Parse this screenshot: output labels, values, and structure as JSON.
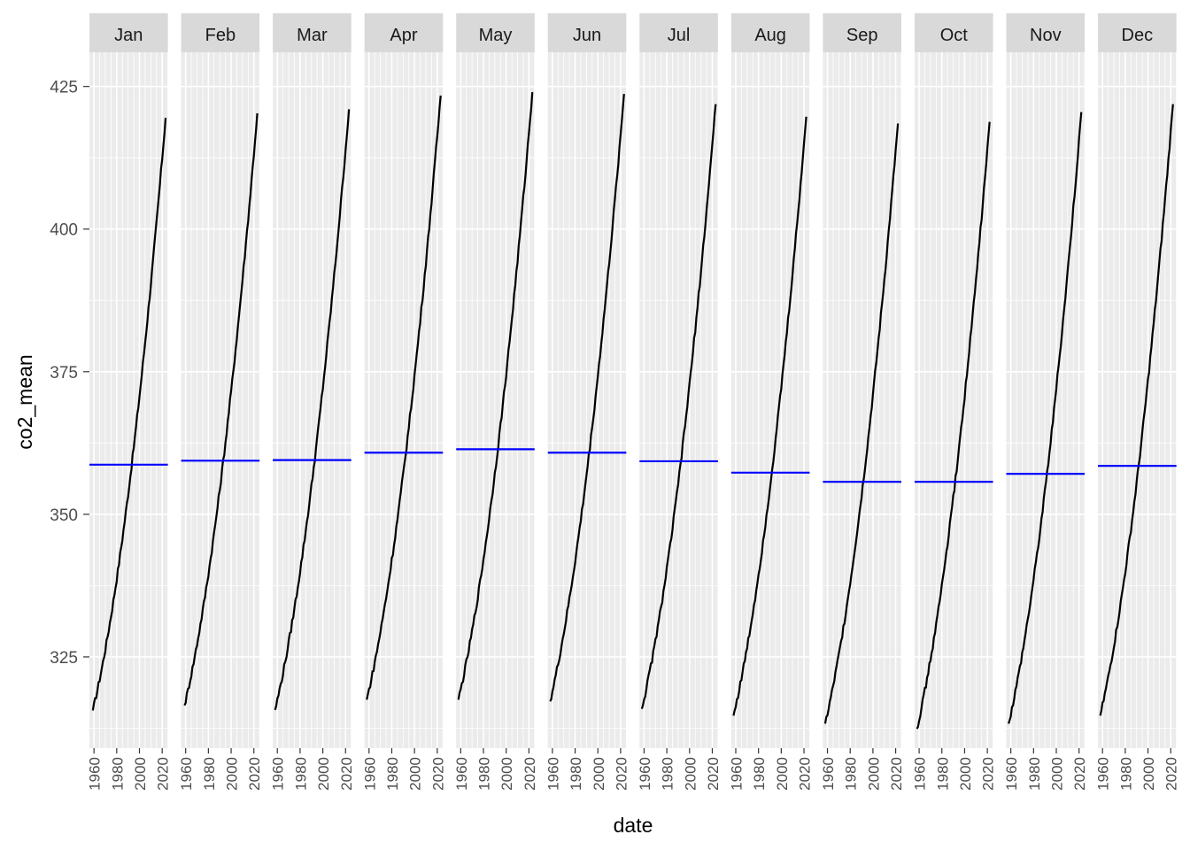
{
  "chart_data": {
    "type": "line",
    "layout": "faceted-by-month",
    "xlabel": "date",
    "ylabel": "co2_mean",
    "xlim": [
      1956,
      2025
    ],
    "ylim": [
      309,
      431
    ],
    "x_ticks": [
      1960,
      1980,
      2000,
      2020
    ],
    "y_ticks": [
      325,
      350,
      375,
      400,
      425
    ],
    "grid": true,
    "legend": "none",
    "colors": {
      "panel_bg": "#ebebeb",
      "strip_bg": "#d9d9d9",
      "grid": "#ffffff",
      "series": "#000000",
      "mean_line": "#0000ff",
      "axis_text": "#4d4d4d"
    },
    "series": [
      {
        "name": "Jan",
        "start_year": 1959,
        "end_year": 2023,
        "start_value": 315.6,
        "end_value": 419.5,
        "mean": 358.7
      },
      {
        "name": "Feb",
        "start_year": 1959,
        "end_year": 2023,
        "start_value": 316.5,
        "end_value": 420.3,
        "mean": 359.4
      },
      {
        "name": "Mar",
        "start_year": 1958,
        "end_year": 2023,
        "start_value": 315.7,
        "end_value": 421.0,
        "mean": 359.5
      },
      {
        "name": "Apr",
        "start_year": 1958,
        "end_year": 2023,
        "start_value": 317.5,
        "end_value": 423.4,
        "mean": 360.8
      },
      {
        "name": "May",
        "start_year": 1958,
        "end_year": 2023,
        "start_value": 317.5,
        "end_value": 424.0,
        "mean": 361.4
      },
      {
        "name": "Jun",
        "start_year": 1958,
        "end_year": 2023,
        "start_value": 317.2,
        "end_value": 423.7,
        "mean": 360.8
      },
      {
        "name": "Jul",
        "start_year": 1958,
        "end_year": 2023,
        "start_value": 315.9,
        "end_value": 421.9,
        "mean": 359.3
      },
      {
        "name": "Aug",
        "start_year": 1958,
        "end_year": 2022,
        "start_value": 314.7,
        "end_value": 419.7,
        "mean": 357.3
      },
      {
        "name": "Sep",
        "start_year": 1958,
        "end_year": 2022,
        "start_value": 313.3,
        "end_value": 418.5,
        "mean": 355.7
      },
      {
        "name": "Oct",
        "start_year": 1958,
        "end_year": 2022,
        "start_value": 312.4,
        "end_value": 418.8,
        "mean": 355.7
      },
      {
        "name": "Nov",
        "start_year": 1958,
        "end_year": 2022,
        "start_value": 313.3,
        "end_value": 420.5,
        "mean": 357.1
      },
      {
        "name": "Dec",
        "start_year": 1958,
        "end_year": 2022,
        "start_value": 314.7,
        "end_value": 421.9,
        "mean": 358.5
      }
    ]
  }
}
